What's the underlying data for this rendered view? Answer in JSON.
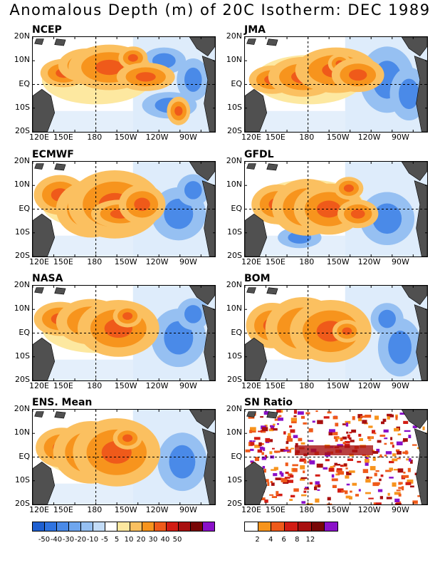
{
  "title": "Anomalous Depth (m) of 20C Isotherm: DEC 1989",
  "panels": [
    {
      "label": "NCEP"
    },
    {
      "label": "JMA"
    },
    {
      "label": "ECMWF"
    },
    {
      "label": "GFDL"
    },
    {
      "label": "NASA"
    },
    {
      "label": "BOM"
    },
    {
      "label": "ENS. Mean"
    },
    {
      "label": "SN Ratio"
    }
  ],
  "lat_labels": [
    "20N",
    "10N",
    "EQ",
    "10S",
    "20S"
  ],
  "lon_labels": [
    "120E",
    "150E",
    "180",
    "150W",
    "120W",
    "90W"
  ],
  "colorbar_anomaly": {
    "labels": [
      "-50",
      "-40",
      "-30",
      "-20",
      "-10",
      "-5",
      "5",
      "10",
      "20",
      "30",
      "40",
      "50"
    ],
    "colors": [
      "#1e5fd0",
      "#2f73e0",
      "#4a8ae8",
      "#6fa6ee",
      "#96c0f2",
      "#c3dcf7",
      "#ffffff",
      "#fde8a0",
      "#fbc060",
      "#f7941d",
      "#ef5a1a",
      "#d21c14",
      "#a80f0f",
      "#780606",
      "#8a10c8"
    ]
  },
  "colorbar_sn": {
    "labels": [
      "2",
      "4",
      "6",
      "8",
      "12"
    ],
    "colors": [
      "#ffffff",
      "#f7941d",
      "#ef5a1a",
      "#d21c14",
      "#a80f0f",
      "#780606",
      "#8a10c8"
    ]
  }
}
